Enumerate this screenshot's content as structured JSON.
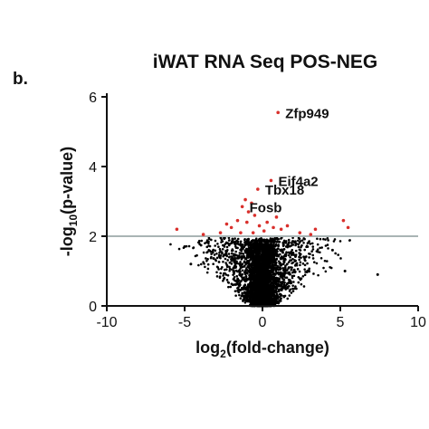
{
  "panel_label": "b.",
  "chart_data": {
    "type": "scatter",
    "title": "iWAT RNA Seq POS-NEG",
    "xlabel": {
      "pre": "log",
      "sub": "2",
      "post": "(fold-change)"
    },
    "ylabel": {
      "pre": "-log",
      "sub": "10",
      "post": "(p-value)"
    },
    "xlim": [
      -10,
      10
    ],
    "ylim": [
      0,
      6
    ],
    "xticks": [
      -10,
      -5,
      0,
      5,
      10
    ],
    "yticks": [
      0,
      2,
      4,
      6
    ],
    "threshold": {
      "y": 2,
      "color": "#a9b4b4"
    },
    "colors": {
      "significant": "#d9302c",
      "nonsignificant": "#000000"
    },
    "grid": false,
    "significant_points": [
      {
        "x": 1.0,
        "y": 5.55,
        "label": "Zfp949"
      },
      {
        "x": 0.55,
        "y": 3.6,
        "label": "Eif4a2"
      },
      {
        "x": -0.3,
        "y": 3.35,
        "label": "Tbx18"
      },
      {
        "x": -1.1,
        "y": 3.05,
        "label": ""
      },
      {
        "x": -1.3,
        "y": 2.85,
        "label": "Fosb"
      },
      {
        "x": -0.7,
        "y": 2.95,
        "label": ""
      },
      {
        "x": -0.5,
        "y": 2.6,
        "label": ""
      },
      {
        "x": -1.6,
        "y": 2.45,
        "label": ""
      },
      {
        "x": -2.3,
        "y": 2.35,
        "label": ""
      },
      {
        "x": -2.0,
        "y": 2.25,
        "label": ""
      },
      {
        "x": -1.0,
        "y": 2.4,
        "label": ""
      },
      {
        "x": -0.2,
        "y": 2.3,
        "label": ""
      },
      {
        "x": 0.3,
        "y": 2.4,
        "label": ""
      },
      {
        "x": 0.7,
        "y": 2.25,
        "label": ""
      },
      {
        "x": 1.2,
        "y": 2.2,
        "label": ""
      },
      {
        "x": 1.6,
        "y": 2.3,
        "label": ""
      },
      {
        "x": 0.1,
        "y": 2.15,
        "label": ""
      },
      {
        "x": -0.6,
        "y": 2.1,
        "label": ""
      },
      {
        "x": -1.4,
        "y": 2.1,
        "label": ""
      },
      {
        "x": 2.4,
        "y": 2.1,
        "label": ""
      },
      {
        "x": 3.4,
        "y": 2.2,
        "label": ""
      },
      {
        "x": 3.1,
        "y": 2.05,
        "label": ""
      },
      {
        "x": -2.7,
        "y": 2.1,
        "label": ""
      },
      {
        "x": -5.5,
        "y": 2.2,
        "label": ""
      },
      {
        "x": -3.8,
        "y": 2.05,
        "label": ""
      },
      {
        "x": 5.2,
        "y": 2.45,
        "label": ""
      },
      {
        "x": 5.5,
        "y": 2.25,
        "label": ""
      },
      {
        "x": 0.9,
        "y": 2.55,
        "label": ""
      },
      {
        "x": -0.9,
        "y": 2.7,
        "label": ""
      }
    ],
    "nonsignificant_region": {
      "description_free": true,
      "x_center": 0,
      "max_abs_x": 7.5,
      "max_y": 2,
      "outliers": [
        {
          "x": 7.4,
          "y": 0.9
        },
        {
          "x": -5.0,
          "y": 1.7
        },
        {
          "x": 4.5,
          "y": 1.6
        },
        {
          "x": -4.6,
          "y": 1.2
        },
        {
          "x": 5.3,
          "y": 1.0
        }
      ]
    }
  }
}
